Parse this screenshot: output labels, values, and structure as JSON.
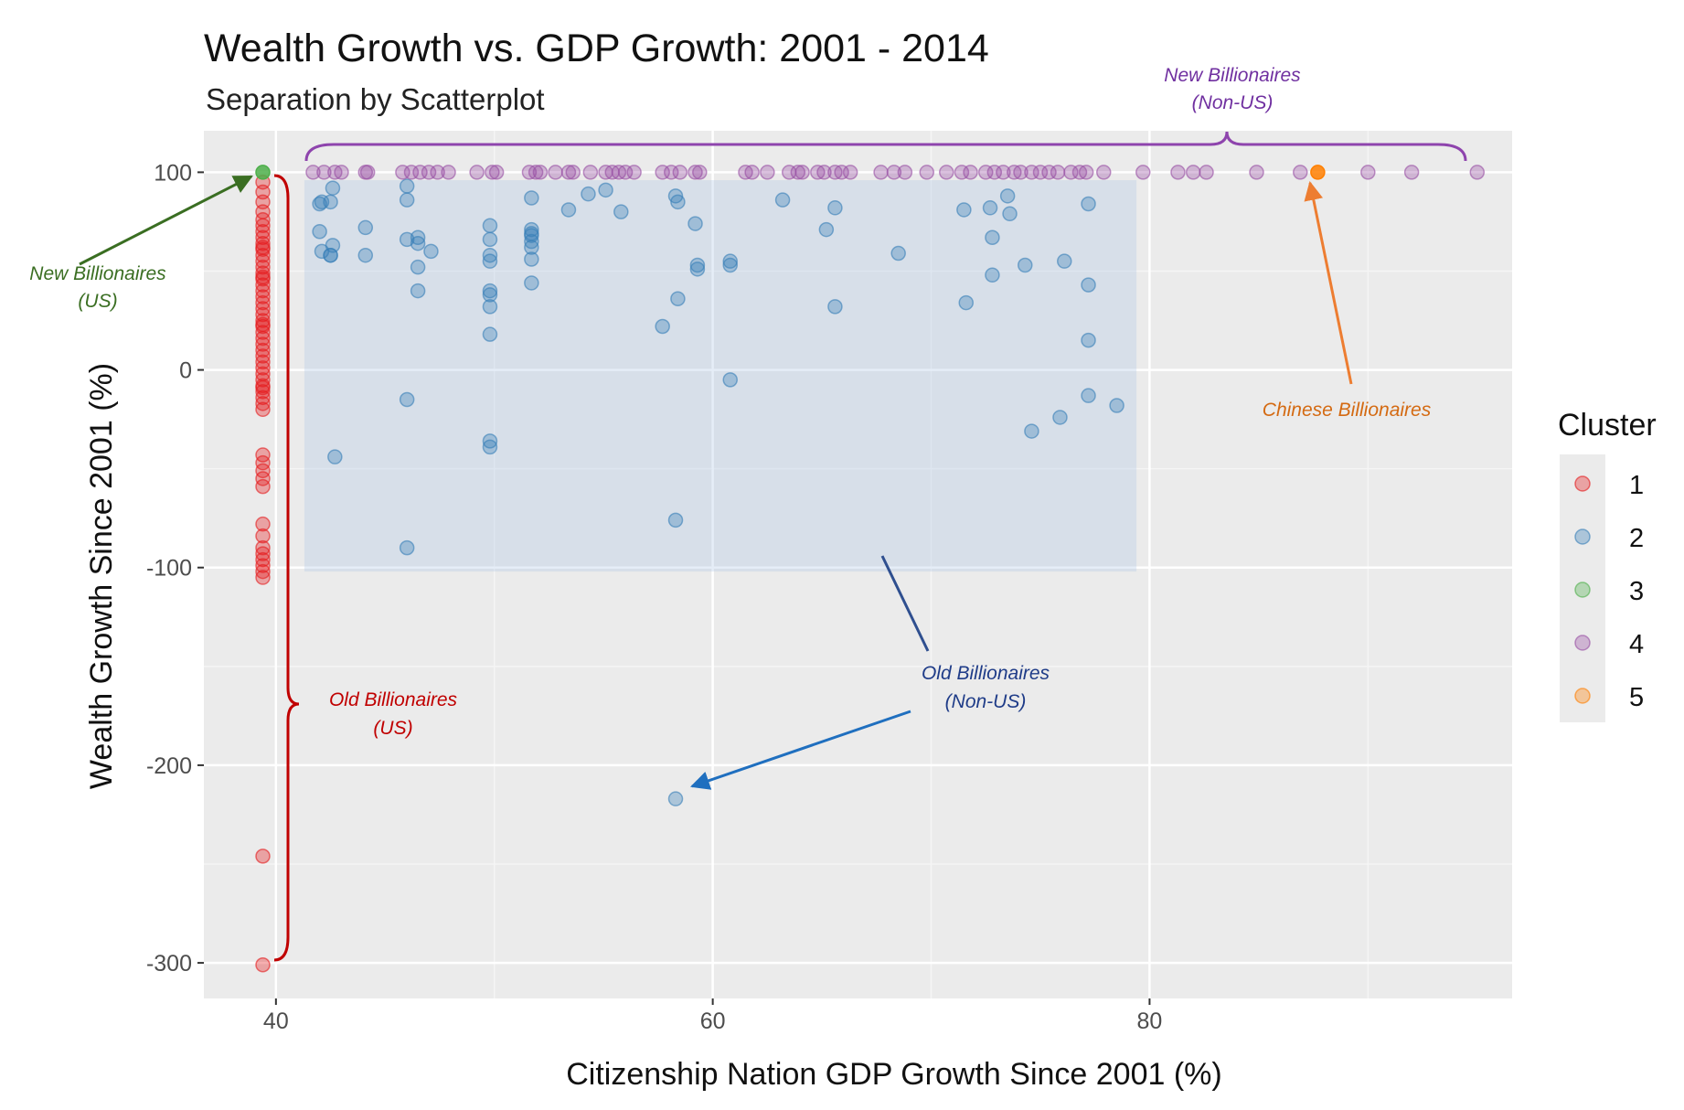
{
  "chart_data": {
    "type": "scatter",
    "title": "Wealth Growth vs. GDP Growth: 2001 - 2014",
    "subtitle": "Separation by Scatterplot",
    "xlabel": "Citizenship Nation GDP Growth Since 2001 (%)",
    "ylabel": "Wealth Growth Since 2001 (%)",
    "xlim": [
      36.7,
      96.6
    ],
    "ylim": [
      -318,
      121
    ],
    "xticks": [
      40,
      60,
      80
    ],
    "yticks": [
      100,
      0,
      -100,
      -200,
      -300
    ],
    "grid": true,
    "legend": {
      "title": "Cluster",
      "position": "right"
    },
    "series": [
      {
        "name": "1",
        "color": "#e41a1c",
        "x": [
          39.4,
          39.4,
          39.4,
          39.4,
          39.4,
          39.4,
          39.4,
          39.4,
          39.4,
          39.4,
          39.4,
          39.4,
          39.4,
          39.4,
          39.4,
          39.4,
          39.4,
          39.4,
          39.4,
          39.4,
          39.4,
          39.4,
          39.4,
          39.4,
          39.4,
          39.4,
          39.4,
          39.4,
          39.4,
          39.4,
          39.4,
          39.4,
          39.4,
          39.4,
          39.4,
          39.4,
          39.4,
          39.4,
          39.4,
          39.4,
          39.4,
          39.4,
          39.4,
          39.4,
          39.4,
          39.4,
          39.4,
          39.4,
          39.4,
          39.4,
          39.4,
          39.4,
          39.4,
          39.4,
          39.4,
          39.4
        ],
        "y": [
          95,
          90,
          85,
          80,
          76,
          73,
          70,
          67,
          64,
          61,
          58,
          55,
          52,
          49,
          46,
          43,
          40,
          37,
          34,
          31,
          28,
          25,
          22,
          19,
          16,
          13,
          10,
          7,
          4,
          1,
          -2,
          -5,
          -8,
          -11,
          -14,
          -17,
          -20,
          -43,
          -47,
          -51,
          -55,
          -59,
          -78,
          -84,
          -90,
          -93,
          -96,
          -99,
          -102,
          -105,
          -246,
          -301,
          62,
          47,
          23,
          -9
        ]
      },
      {
        "name": "2",
        "color": "#377eb8",
        "x": [
          42,
          42.1,
          42.5,
          42.6,
          42,
          42.1,
          42.6,
          42.5,
          42.5,
          44.1,
          44.1,
          46,
          46,
          46,
          46,
          46.5,
          46.5,
          46.5,
          46.5,
          47.1,
          49.8,
          49.8,
          49.8,
          49.8,
          49.8,
          49.8,
          49.8,
          49.8,
          49.8,
          49.8,
          51.7,
          51.7,
          51.7,
          51.7,
          51.7,
          51.7,
          51.7,
          51.7,
          53.4,
          54.3,
          55.1,
          55.8,
          57.7,
          58.3,
          58.4,
          59.2,
          59.3,
          59.3,
          58.4,
          58.3,
          58.3,
          60.8,
          60.8,
          60.8,
          63.2,
          65.2,
          65.6,
          65.6,
          68.5,
          71.5,
          71.6,
          72.7,
          72.8,
          72.8,
          73.5,
          73.6,
          74.3,
          74.6,
          75.9,
          76.1,
          77.2,
          77.2,
          77.2,
          77.2,
          78.5,
          42.7,
          46
        ],
        "y": [
          84,
          85,
          85,
          92,
          70,
          60,
          63,
          58,
          58,
          72,
          58,
          93,
          86,
          66,
          -15,
          67,
          64,
          52,
          40,
          60,
          73,
          66,
          58,
          55,
          40,
          38,
          32,
          18,
          -36,
          -39,
          87,
          71,
          68,
          62,
          56,
          44,
          69,
          65,
          81,
          89,
          91,
          80,
          22,
          88,
          85,
          74,
          53,
          51,
          36,
          -76,
          -217,
          55,
          53,
          -5,
          86,
          71,
          82,
          32,
          59,
          81,
          34,
          82,
          67,
          48,
          88,
          79,
          53,
          -31,
          -24,
          55,
          84,
          43,
          15,
          -13,
          -18,
          -44,
          -90
        ]
      },
      {
        "name": "3",
        "color": "#4daf4a",
        "x": [
          39.4
        ],
        "y": [
          100
        ]
      },
      {
        "name": "4",
        "color": "#984ea3",
        "x": [
          41.7,
          42.2,
          42.7,
          43.0,
          44.1,
          44.2,
          45.8,
          46.2,
          46.6,
          47.0,
          47.4,
          49.2,
          49.9,
          50.1,
          51.6,
          51.9,
          52.1,
          52.8,
          53.4,
          53.6,
          54.4,
          55.1,
          55.4,
          55.7,
          56.0,
          56.4,
          57.7,
          58.1,
          58.5,
          59.2,
          59.4,
          61.5,
          61.8,
          62.5,
          63.5,
          63.9,
          64.1,
          64.8,
          65.1,
          65.6,
          65.9,
          66.3,
          67.7,
          68.3,
          68.8,
          70.7,
          71.4,
          71.8,
          72.5,
          72.9,
          73.3,
          73.8,
          74.1,
          74.6,
          75.0,
          75.4,
          75.8,
          76.4,
          76.8,
          77.1,
          77.9,
          79.7,
          81.3,
          82.0,
          82.6,
          84.9,
          86.9,
          90.0,
          95.0,
          92.0,
          69.8,
          47.9
        ],
        "y": [
          100,
          100,
          100,
          100,
          100,
          100,
          100,
          100,
          100,
          100,
          100,
          100,
          100,
          100,
          100,
          100,
          100,
          100,
          100,
          100,
          100,
          100,
          100,
          100,
          100,
          100,
          100,
          100,
          100,
          100,
          100,
          100,
          100,
          100,
          100,
          100,
          100,
          100,
          100,
          100,
          100,
          100,
          100,
          100,
          100,
          100,
          100,
          100,
          100,
          100,
          100,
          100,
          100,
          100,
          100,
          100,
          100,
          100,
          100,
          100,
          100,
          100,
          100,
          100,
          100,
          100,
          100,
          100,
          100,
          100,
          100,
          100
        ]
      },
      {
        "name": "5",
        "color": "#ff7f00",
        "x": [
          87.7
        ],
        "y": [
          100
        ]
      }
    ],
    "annotations": [
      {
        "text_lines": [
          "New Billionaires",
          "(Non-US)"
        ],
        "color": "#7030a0"
      },
      {
        "text_lines": [
          "New Billionaires",
          "(US)"
        ],
        "color": "#3a6e22"
      },
      {
        "text_lines": [
          "Chinese Billionaires"
        ],
        "color": "#d46a12"
      },
      {
        "text_lines": [
          "Old Billionaires",
          "(US)"
        ],
        "color": "#c00000"
      },
      {
        "text_lines": [
          "Old Billionaires",
          "(Non-US)"
        ],
        "color": "#1f3c88"
      }
    ],
    "shaded_region": {
      "x": [
        41.3,
        79.4
      ],
      "y": [
        -102,
        96
      ],
      "color": "#a9c3e4"
    }
  }
}
